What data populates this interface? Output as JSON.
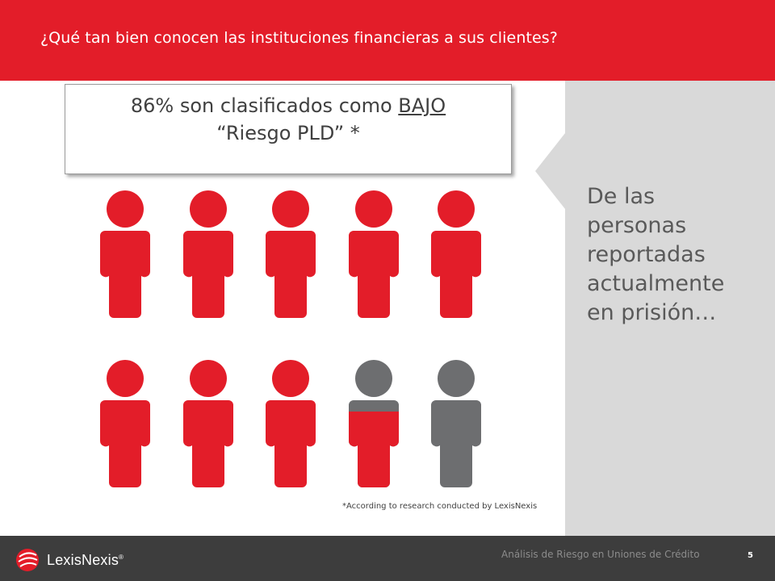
{
  "header": {
    "title": "¿Qué tan bien conocen las instituciones financieras a sus clientes?"
  },
  "stat_box": {
    "line1_prefix": "86% son clasificados como ",
    "line1_emphasis": "BAJO",
    "line2": "“Riesgo PLD” *"
  },
  "callout": {
    "text": "De las personas reportadas actualmente en prisión…"
  },
  "people": {
    "total": 10,
    "red_fraction": 0.86,
    "colors": {
      "red": "#e31d29",
      "gray": "#6d6e70"
    }
  },
  "footnote": "*According to research conducted by LexisNexis",
  "footer": {
    "logo_text": "LexisNexis",
    "logo_mark": "®",
    "caption": "Análisis de Riesgo en Uniones de Crédito",
    "page_number": "5"
  }
}
